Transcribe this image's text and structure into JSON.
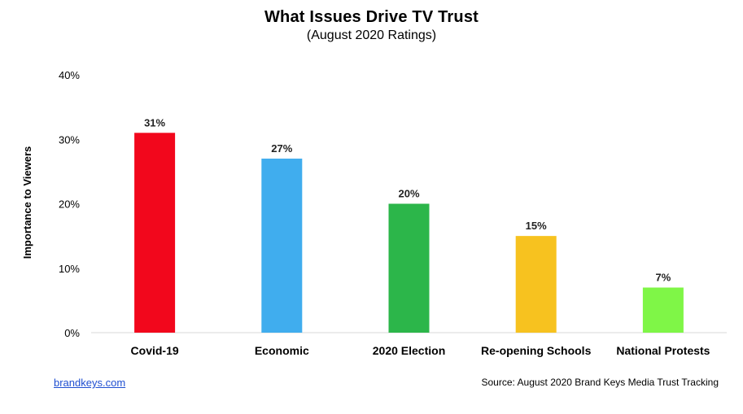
{
  "chart_data": {
    "type": "bar",
    "title": "What Issues Drive TV Trust",
    "subtitle": "(August 2020 Ratings)",
    "ylabel": "Importance to Viewers",
    "xlabel": "",
    "categories": [
      "Covid-19",
      "Economic",
      "2020 Election",
      "Re-opening Schools",
      "National Protests"
    ],
    "values": [
      31,
      27,
      20,
      15,
      7
    ],
    "data_labels": [
      "31%",
      "27%",
      "20%",
      "15%",
      "7%"
    ],
    "colors": [
      "#f2071c",
      "#40adee",
      "#2cb64a",
      "#f7c21f",
      "#7ff647"
    ],
    "ylim": [
      0,
      40
    ],
    "yticks": [
      0,
      10,
      20,
      30,
      40
    ],
    "ytick_labels": [
      "0%",
      "10%",
      "20%",
      "30%",
      "40%"
    ],
    "grid": false,
    "legend": "none"
  },
  "footer": {
    "link_text": "brandkeys.com",
    "source_text": "Source: August 2020 Brand Keys Media Trust Tracking"
  }
}
